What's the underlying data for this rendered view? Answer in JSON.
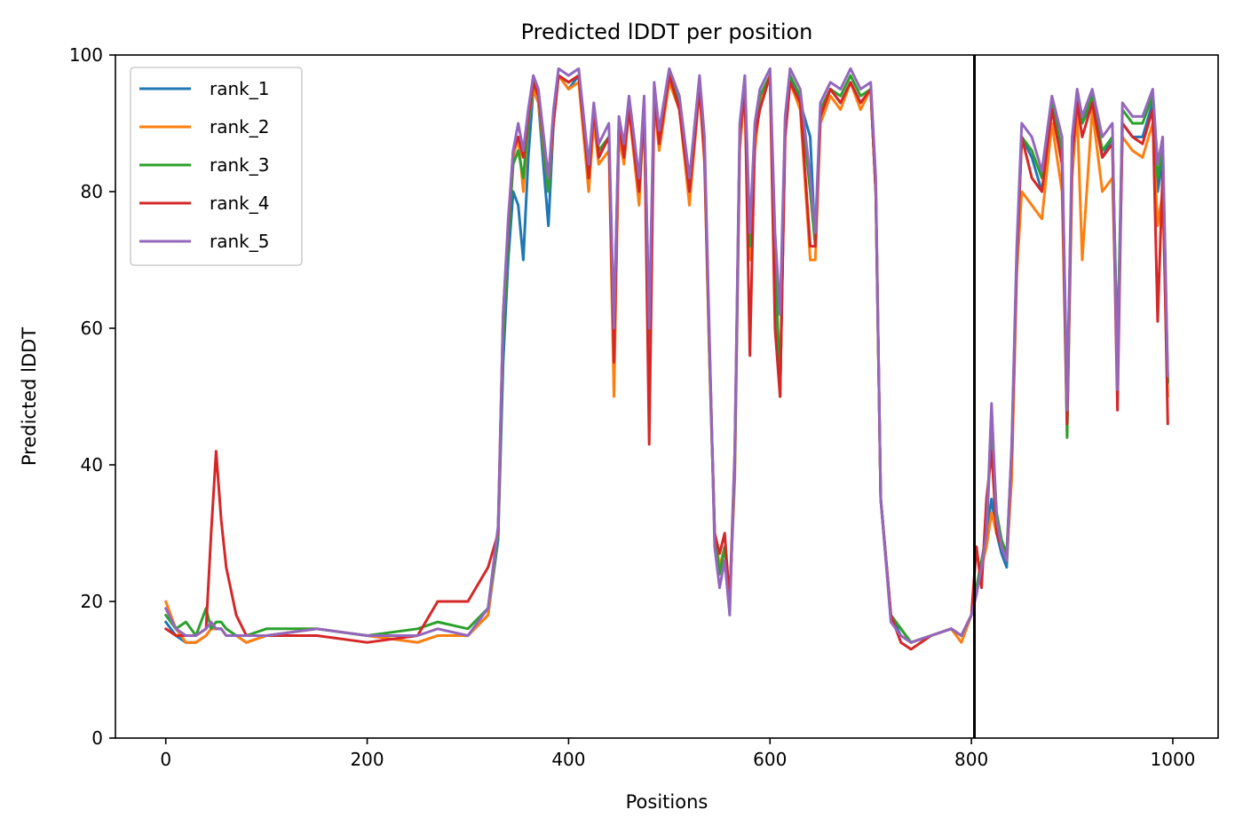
{
  "chart_data": {
    "type": "line",
    "title": "Predicted lDDT per position",
    "xlabel": "Positions",
    "ylabel": "Predicted lDDT",
    "xlim": [
      -50,
      1045
    ],
    "ylim": [
      0,
      100
    ],
    "xticks": [
      0,
      200,
      400,
      600,
      800,
      1000
    ],
    "yticks": [
      0,
      20,
      40,
      60,
      80,
      100
    ],
    "grid": false,
    "legend_position": "top-left",
    "vline_x": 803,
    "vline_color": "#000000",
    "x": [
      0,
      10,
      20,
      30,
      40,
      45,
      50,
      55,
      60,
      70,
      80,
      100,
      150,
      200,
      250,
      270,
      300,
      320,
      330,
      335,
      340,
      345,
      350,
      355,
      360,
      365,
      370,
      380,
      385,
      390,
      400,
      410,
      420,
      425,
      430,
      440,
      445,
      450,
      455,
      460,
      470,
      475,
      480,
      485,
      490,
      500,
      510,
      520,
      530,
      535,
      540,
      545,
      550,
      555,
      560,
      565,
      570,
      575,
      580,
      585,
      590,
      600,
      605,
      610,
      615,
      620,
      630,
      640,
      645,
      650,
      660,
      670,
      680,
      690,
      700,
      705,
      710,
      720,
      730,
      740,
      760,
      780,
      790,
      800,
      805,
      810,
      815,
      820,
      825,
      830,
      835,
      840,
      845,
      850,
      860,
      870,
      880,
      890,
      895,
      900,
      905,
      910,
      920,
      930,
      940,
      945,
      950,
      960,
      970,
      980,
      985,
      990,
      995
    ],
    "series": [
      {
        "name": "rank_1",
        "color": "#1f77b4",
        "values": [
          17,
          15,
          14,
          14,
          15,
          16,
          16,
          16,
          15,
          15,
          14,
          15,
          16,
          15,
          14,
          15,
          15,
          18,
          29,
          55,
          70,
          80,
          78,
          70,
          85,
          95,
          93,
          75,
          90,
          97,
          95,
          97,
          80,
          92,
          85,
          88,
          60,
          90,
          85,
          93,
          80,
          93,
          60,
          93,
          88,
          97,
          92,
          80,
          95,
          85,
          55,
          30,
          25,
          28,
          20,
          40,
          88,
          95,
          72,
          88,
          93,
          97,
          70,
          50,
          90,
          97,
          93,
          88,
          72,
          92,
          95,
          93,
          96,
          93,
          95,
          80,
          35,
          18,
          15,
          14,
          15,
          16,
          15,
          18,
          22,
          25,
          30,
          35,
          30,
          27,
          25,
          40,
          70,
          88,
          85,
          80,
          92,
          85,
          50,
          85,
          93,
          90,
          93,
          85,
          88,
          55,
          90,
          88,
          88,
          93,
          80,
          85,
          52
        ]
      },
      {
        "name": "rank_2",
        "color": "#ff7f0e",
        "values": [
          20,
          16,
          14,
          14,
          15,
          16,
          16,
          16,
          15,
          15,
          14,
          15,
          16,
          15,
          14,
          15,
          15,
          18,
          30,
          60,
          75,
          85,
          88,
          80,
          90,
          95,
          93,
          80,
          90,
          97,
          95,
          96,
          80,
          90,
          84,
          86,
          50,
          88,
          84,
          92,
          78,
          92,
          55,
          93,
          86,
          96,
          92,
          78,
          95,
          84,
          55,
          30,
          25,
          28,
          20,
          38,
          86,
          95,
          70,
          86,
          93,
          97,
          70,
          52,
          88,
          96,
          92,
          70,
          70,
          90,
          94,
          92,
          96,
          92,
          95,
          80,
          35,
          18,
          16,
          14,
          15,
          16,
          14,
          18,
          22,
          25,
          28,
          33,
          30,
          28,
          26,
          38,
          68,
          80,
          78,
          76,
          90,
          80,
          45,
          82,
          92,
          70,
          92,
          80,
          82,
          55,
          88,
          86,
          85,
          90,
          75,
          80,
          50
        ]
      },
      {
        "name": "rank_3",
        "color": "#2ca02c",
        "values": [
          18,
          16,
          17,
          15,
          19,
          16,
          17,
          17,
          16,
          15,
          15,
          16,
          16,
          15,
          16,
          17,
          16,
          19,
          30,
          58,
          73,
          84,
          86,
          82,
          90,
          96,
          94,
          80,
          91,
          97,
          96,
          97,
          82,
          92,
          86,
          88,
          58,
          90,
          86,
          93,
          80,
          92,
          58,
          94,
          88,
          97,
          93,
          80,
          96,
          86,
          56,
          30,
          24,
          28,
          20,
          40,
          88,
          96,
          72,
          88,
          94,
          97,
          72,
          50,
          90,
          97,
          94,
          80,
          72,
          92,
          95,
          94,
          97,
          94,
          95,
          80,
          35,
          18,
          16,
          14,
          15,
          16,
          15,
          18,
          22,
          26,
          30,
          46,
          33,
          29,
          27,
          42,
          70,
          88,
          86,
          82,
          93,
          86,
          44,
          86,
          94,
          90,
          94,
          86,
          88,
          56,
          92,
          90,
          90,
          94,
          82,
          86,
          52
        ]
      },
      {
        "name": "rank_4",
        "color": "#d62728",
        "values": [
          16,
          15,
          15,
          15,
          16,
          30,
          42,
          32,
          25,
          18,
          15,
          15,
          15,
          14,
          15,
          20,
          20,
          25,
          30,
          62,
          75,
          86,
          88,
          85,
          91,
          96,
          94,
          82,
          90,
          97,
          96,
          97,
          82,
          92,
          85,
          88,
          55,
          90,
          85,
          92,
          80,
          93,
          43,
          94,
          87,
          97,
          92,
          80,
          95,
          85,
          57,
          30,
          27,
          30,
          20,
          42,
          88,
          95,
          56,
          88,
          92,
          97,
          60,
          50,
          88,
          96,
          93,
          72,
          72,
          91,
          95,
          93,
          96,
          93,
          95,
          80,
          35,
          18,
          14,
          13,
          15,
          16,
          15,
          18,
          28,
          22,
          35,
          42,
          30,
          28,
          26,
          42,
          70,
          88,
          82,
          80,
          92,
          84,
          46,
          85,
          93,
          88,
          93,
          85,
          87,
          48,
          90,
          88,
          87,
          92,
          61,
          83,
          46
        ]
      },
      {
        "name": "rank_5",
        "color": "#9467bd",
        "values": [
          19,
          16,
          15,
          15,
          16,
          17,
          16,
          16,
          15,
          15,
          15,
          15,
          16,
          15,
          15,
          16,
          15,
          19,
          31,
          62,
          76,
          86,
          90,
          86,
          92,
          97,
          95,
          82,
          92,
          98,
          97,
          98,
          84,
          93,
          87,
          90,
          60,
          91,
          87,
          94,
          82,
          94,
          60,
          96,
          89,
          98,
          94,
          82,
          97,
          88,
          58,
          28,
          22,
          26,
          18,
          42,
          90,
          97,
          74,
          90,
          95,
          98,
          74,
          62,
          91,
          98,
          95,
          82,
          74,
          93,
          96,
          95,
          98,
          95,
          96,
          82,
          35,
          17,
          15,
          14,
          15,
          16,
          15,
          18,
          21,
          25,
          30,
          49,
          32,
          28,
          26,
          43,
          72,
          90,
          88,
          83,
          94,
          88,
          48,
          88,
          95,
          91,
          95,
          88,
          90,
          51,
          93,
          91,
          91,
          95,
          84,
          88,
          53
        ]
      }
    ]
  }
}
